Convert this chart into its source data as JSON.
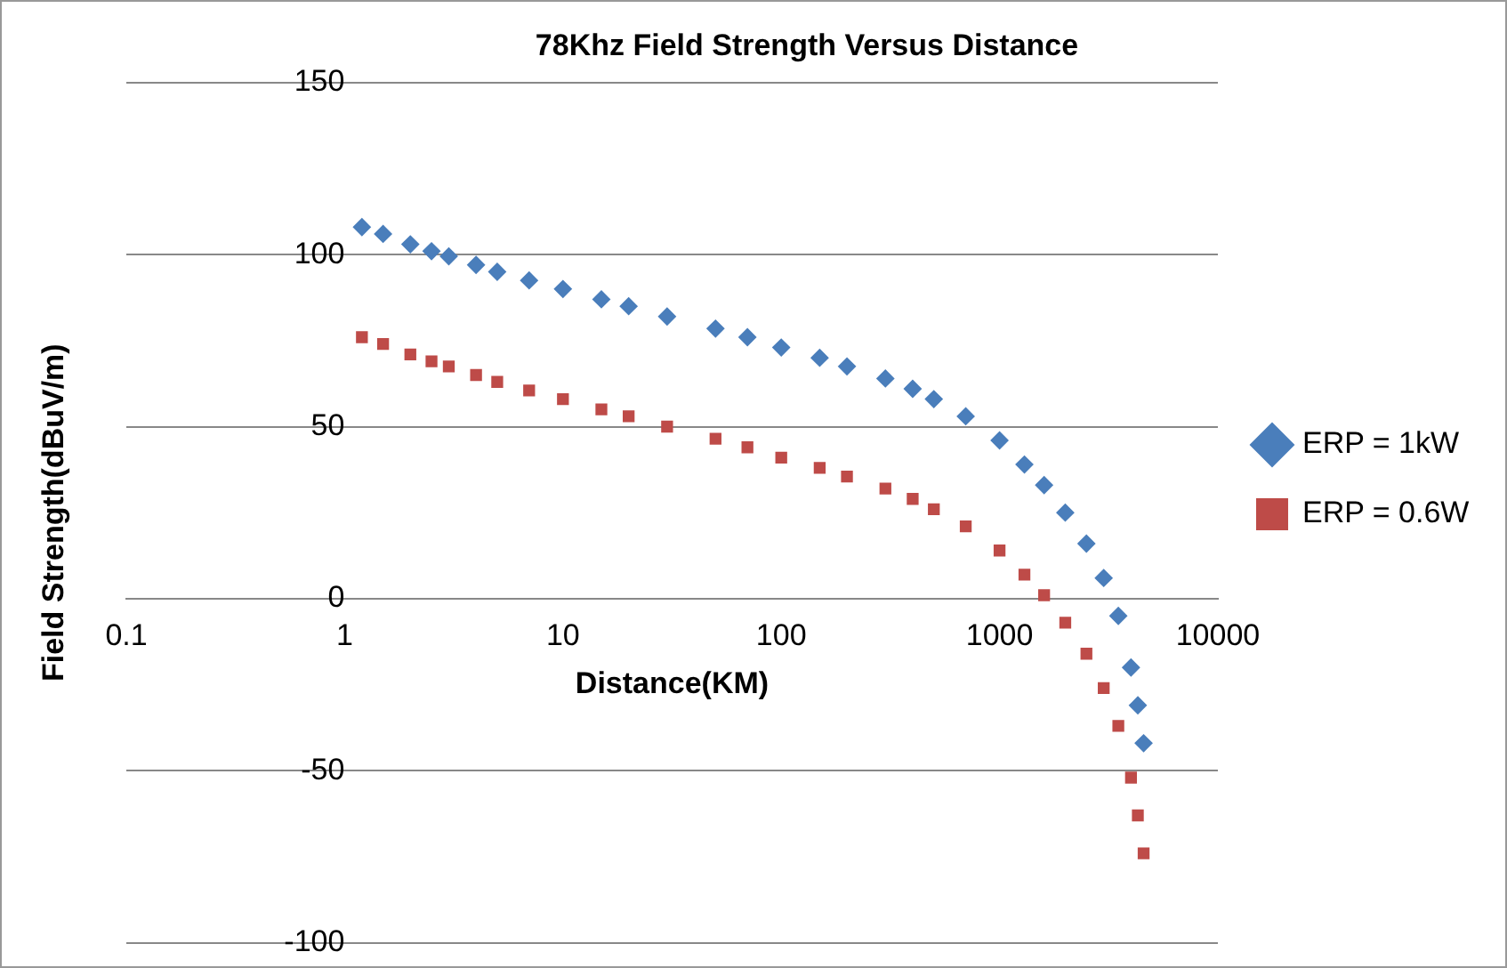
{
  "chart_data": {
    "type": "scatter",
    "title": "78Khz Field Strength Versus Distance",
    "xlabel": "Distance(KM)",
    "ylabel": "Field Strength(dBuV/m)",
    "log": "x",
    "xlim": [
      0.1,
      10000
    ],
    "xticks": [
      0.1,
      1,
      10,
      100,
      1000,
      10000
    ],
    "ylim": [
      -100,
      150
    ],
    "yticks": [
      -100,
      -50,
      0,
      50,
      100,
      150
    ],
    "grid": "y",
    "legend": "right",
    "series": [
      {
        "name": "ERP = 1kW",
        "color": "#4a7ebb",
        "marker": "diamond",
        "x": [
          1.2,
          1.5,
          2,
          2.5,
          3,
          4,
          5,
          7,
          10,
          15,
          20,
          30,
          50,
          70,
          100,
          150,
          200,
          300,
          400,
          500,
          700,
          1000,
          1300,
          1600,
          2000,
          2500,
          3000,
          3500,
          4000,
          4300,
          4570
        ],
        "values": [
          108,
          106,
          103,
          101,
          99.5,
          97,
          95,
          92.5,
          90,
          87,
          85,
          82,
          78.5,
          76,
          73,
          70,
          67.5,
          64,
          61,
          58,
          53,
          46,
          39,
          33,
          25,
          16,
          6,
          -5,
          -20,
          -31,
          -42
        ]
      },
      {
        "name": "ERP = 0.6W",
        "color": "#be4b48",
        "marker": "square",
        "x": [
          1.2,
          1.5,
          2,
          2.5,
          3,
          4,
          5,
          7,
          10,
          15,
          20,
          30,
          50,
          70,
          100,
          150,
          200,
          300,
          400,
          500,
          700,
          1000,
          1300,
          1600,
          2000,
          2500,
          3000,
          3500,
          4000,
          4300,
          4570
        ],
        "values": [
          76,
          74,
          71,
          69,
          67.5,
          65,
          63,
          60.5,
          58,
          55,
          53,
          50,
          46.5,
          44,
          41,
          38,
          35.5,
          32,
          29,
          26,
          21,
          14,
          7,
          1,
          -7,
          -16,
          -26,
          -37,
          -52,
          -63,
          -74
        ]
      }
    ]
  }
}
